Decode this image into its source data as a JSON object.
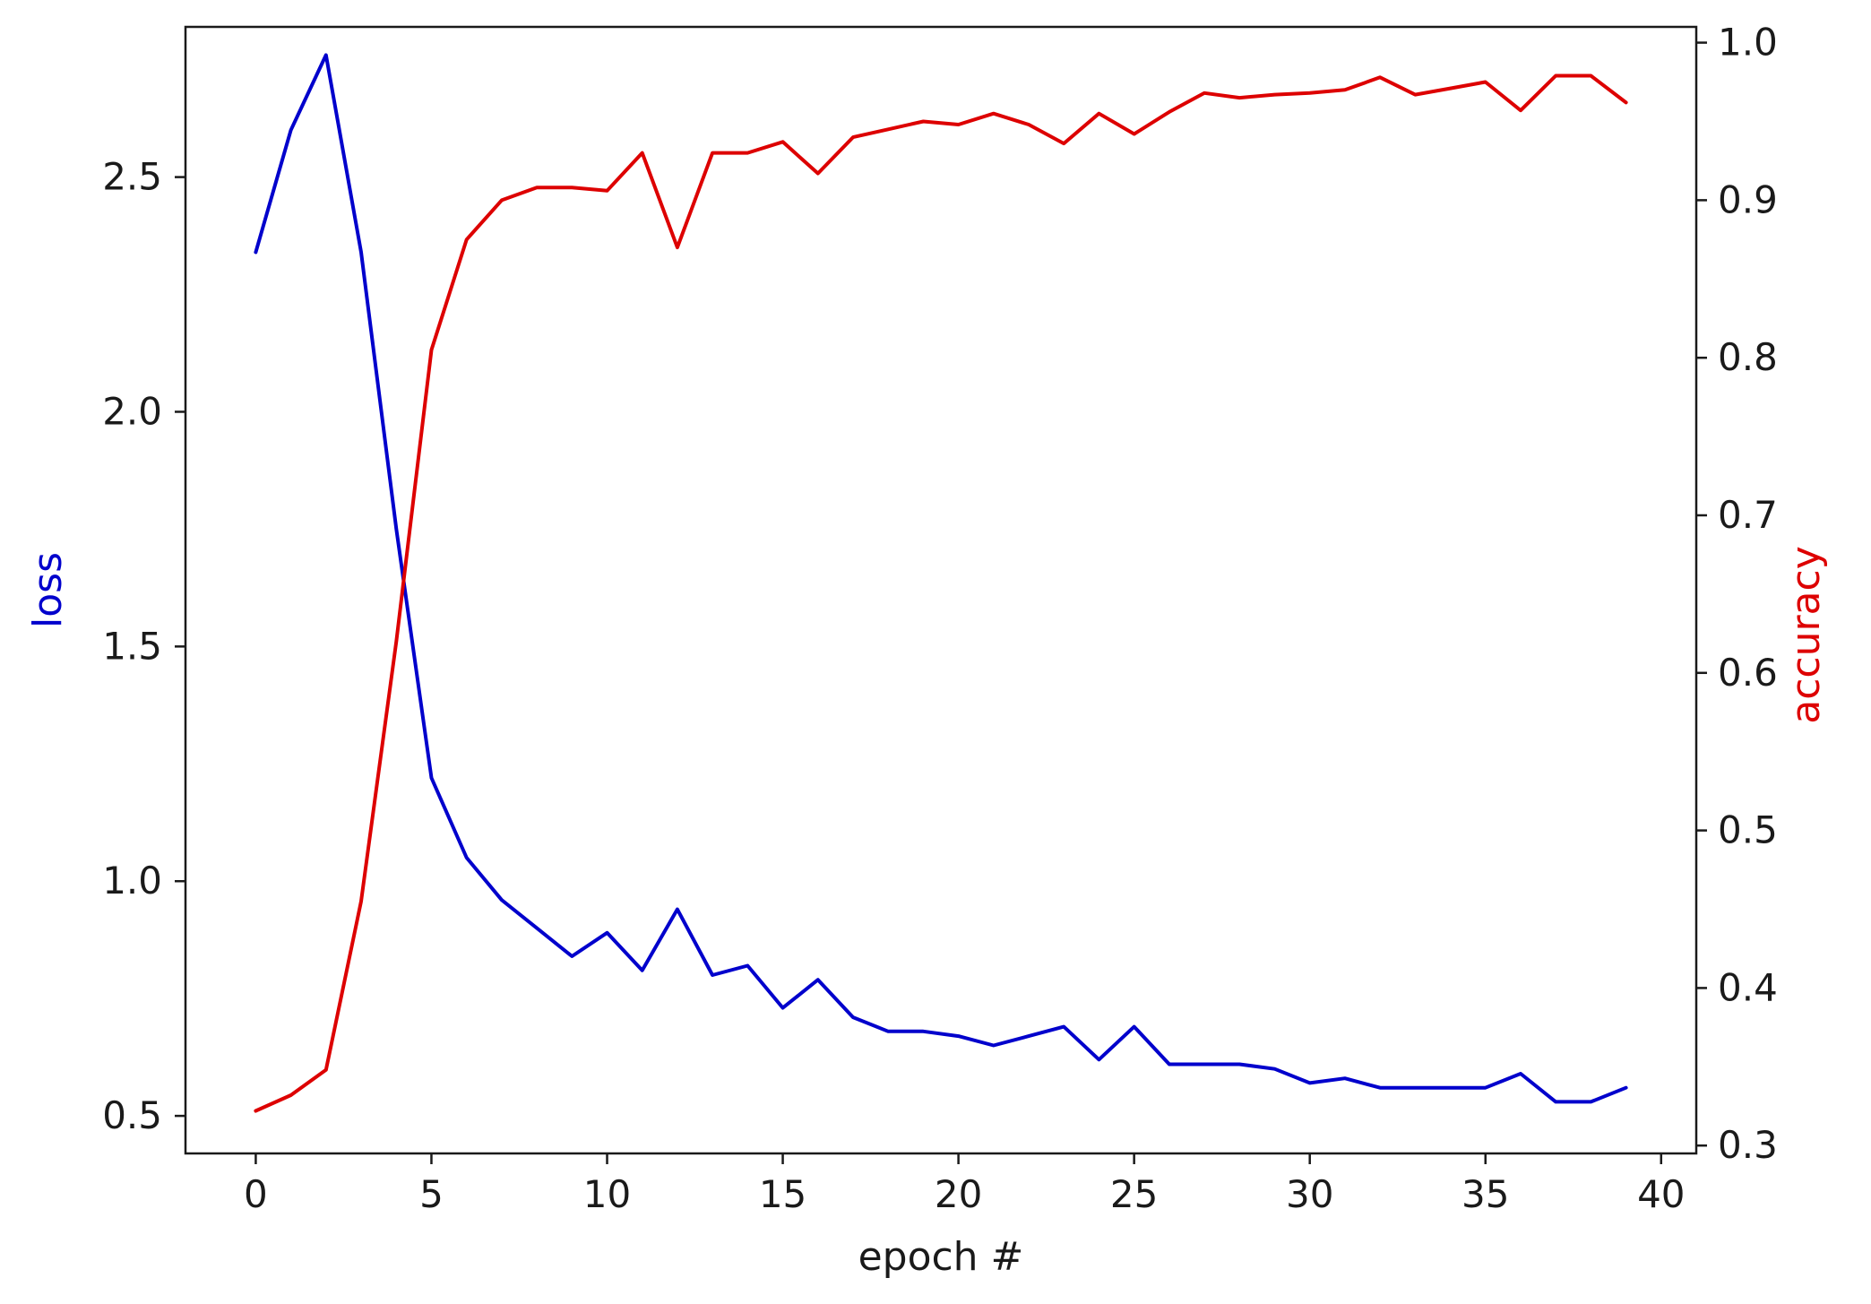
{
  "chart_data": {
    "type": "line",
    "title": "",
    "xlabel": "epoch #",
    "x": [
      0,
      1,
      2,
      3,
      4,
      5,
      6,
      7,
      8,
      9,
      10,
      11,
      12,
      13,
      14,
      15,
      16,
      17,
      18,
      19,
      20,
      21,
      22,
      23,
      24,
      25,
      26,
      27,
      28,
      29,
      30,
      31,
      32,
      33,
      34,
      35,
      36,
      37,
      38,
      39
    ],
    "xlim": [
      -2,
      41
    ],
    "xticks": [
      0,
      5,
      10,
      15,
      20,
      25,
      30,
      35,
      40
    ],
    "grid": false,
    "series": [
      {
        "name": "loss",
        "axis": "left",
        "color": "#0000cc",
        "values": [
          2.34,
          2.6,
          2.76,
          2.34,
          1.75,
          1.22,
          1.05,
          0.96,
          0.9,
          0.84,
          0.89,
          0.81,
          0.94,
          0.8,
          0.82,
          0.73,
          0.79,
          0.71,
          0.68,
          0.68,
          0.67,
          0.65,
          0.67,
          0.69,
          0.62,
          0.69,
          0.61,
          0.61,
          0.61,
          0.6,
          0.57,
          0.58,
          0.56,
          0.56,
          0.56,
          0.56,
          0.59,
          0.53,
          0.53,
          0.56
        ]
      },
      {
        "name": "accuracy",
        "axis": "right",
        "color": "#dd0000",
        "values": [
          0.322,
          0.332,
          0.348,
          0.455,
          0.62,
          0.805,
          0.875,
          0.9,
          0.908,
          0.908,
          0.906,
          0.93,
          0.87,
          0.93,
          0.93,
          0.937,
          0.917,
          0.94,
          0.945,
          0.95,
          0.948,
          0.955,
          0.948,
          0.936,
          0.955,
          0.942,
          0.956,
          0.968,
          0.965,
          0.967,
          0.968,
          0.97,
          0.978,
          0.967,
          0.971,
          0.975,
          0.957,
          0.979,
          0.979,
          0.962
        ]
      }
    ],
    "y_left": {
      "label": "loss",
      "label_color": "#0000cc",
      "ylim": [
        0.42,
        2.82
      ],
      "ticks": [
        0.5,
        1.0,
        1.5,
        2.0,
        2.5
      ],
      "tick_labels": [
        "0.5",
        "1.0",
        "1.5",
        "2.0",
        "2.5"
      ]
    },
    "y_right": {
      "label": "accuracy",
      "label_color": "#dd0000",
      "ylim": [
        0.295,
        1.01
      ],
      "ticks": [
        0.3,
        0.4,
        0.5,
        0.6,
        0.7,
        0.8,
        0.9,
        1.0
      ],
      "tick_labels": [
        "0.3",
        "0.4",
        "0.5",
        "0.6",
        "0.7",
        "0.8",
        "0.9",
        "1.0"
      ]
    }
  }
}
